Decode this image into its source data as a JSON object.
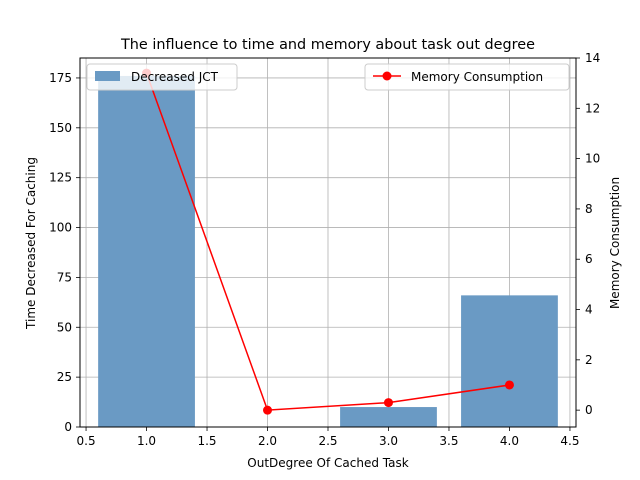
{
  "chart_data": {
    "type": "bar+line",
    "title": "The influence to time and memory about task out degree",
    "xlabel": "OutDegree Of Cached Task",
    "ylabel_left": "Time Decreased For Caching",
    "ylabel_right": "Memory Consumption",
    "xlim": [
      0.45,
      4.55
    ],
    "ylim_left": [
      0,
      185
    ],
    "ylim_right": [
      -0.67,
      14
    ],
    "x_ticks": [
      "0.5",
      "1.0",
      "1.5",
      "2.0",
      "2.5",
      "3.0",
      "3.5",
      "4.0",
      "4.5"
    ],
    "y_left_ticks": [
      "0",
      "25",
      "50",
      "75",
      "100",
      "125",
      "150",
      "175"
    ],
    "y_right_ticks": [
      "0",
      "2",
      "4",
      "6",
      "8",
      "10",
      "12",
      "14"
    ],
    "grid": true,
    "bar_width": 0.8,
    "series": [
      {
        "name": "Decreased JCT",
        "kind": "bar",
        "axis": "left",
        "color": "#6a9ac4",
        "x": [
          1.0,
          2.0,
          3.0,
          4.0
        ],
        "values": [
          176,
          0,
          10,
          66
        ]
      },
      {
        "name": "Memory Consumption",
        "kind": "line",
        "axis": "right",
        "color": "#ff0000",
        "x": [
          1.0,
          2.0,
          3.0,
          4.0
        ],
        "values": [
          13.4,
          0.0,
          0.3,
          1.0
        ]
      }
    ],
    "legends": [
      {
        "series": "Decreased JCT",
        "position": "upper-left"
      },
      {
        "series": "Memory Consumption",
        "position": "upper-right"
      }
    ]
  }
}
